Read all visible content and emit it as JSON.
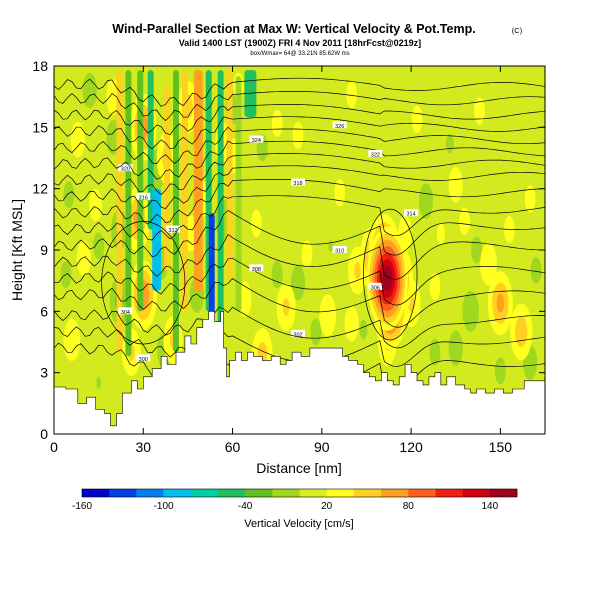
{
  "title": "Wind-Parallel Section at Max W: Vertical Velocity & Pot.Temp.",
  "copyright": "(C)",
  "subtitle": "Valid 1400 LST (1900Z) FRI 4 Nov 2011 [18hrFcst@0219z]",
  "subsubtitle": "box/Wmax= 64@ 33.21N 85.62W ms",
  "chart_data": {
    "type": "heatmap",
    "xlabel": "Distance [nm]",
    "ylabel": "Height [Kft MSL]",
    "xlim": [
      0,
      165
    ],
    "ylim": [
      0,
      18
    ],
    "xticks": [
      0,
      30,
      60,
      90,
      120,
      150
    ],
    "yticks": [
      0,
      3,
      6,
      9,
      12,
      15,
      18
    ],
    "colorbar": {
      "label": "Vertical Velocity [cm/s]",
      "tick_labels": [
        "-160",
        "-100",
        "-40",
        "20",
        "80",
        "140"
      ],
      "colors": [
        "#0000c8",
        "#0040e6",
        "#0080f0",
        "#00c0ec",
        "#00d0a8",
        "#20c060",
        "#60c020",
        "#a0d820",
        "#d8f020",
        "#ffff20",
        "#ffd020",
        "#ffa020",
        "#ff6020",
        "#f02010",
        "#d00010",
        "#a00020"
      ]
    },
    "terrain": [
      [
        0,
        2.3
      ],
      [
        4,
        2.2
      ],
      [
        8,
        1.5
      ],
      [
        11,
        1.8
      ],
      [
        14,
        1.2
      ],
      [
        17,
        1.0
      ],
      [
        19,
        0.4
      ],
      [
        21,
        1.0
      ],
      [
        23,
        2.0
      ],
      [
        26,
        2.6
      ],
      [
        28,
        2.2
      ],
      [
        30,
        2.8
      ],
      [
        33,
        3.2
      ],
      [
        36,
        3.8
      ],
      [
        38,
        3.4
      ],
      [
        41,
        4.0
      ],
      [
        44,
        4.8
      ],
      [
        46,
        4.4
      ],
      [
        48,
        5.2
      ],
      [
        50,
        5.6
      ],
      [
        52,
        6.0
      ],
      [
        54,
        5.5
      ],
      [
        56,
        6.0
      ],
      [
        57,
        4.2
      ],
      [
        58,
        2.8
      ],
      [
        59,
        3.6
      ],
      [
        61,
        4.0
      ],
      [
        63,
        3.6
      ],
      [
        65,
        4.0
      ],
      [
        67,
        3.8
      ],
      [
        70,
        3.6
      ],
      [
        73,
        3.8
      ],
      [
        76,
        3.4
      ],
      [
        78,
        3.6
      ],
      [
        80,
        4.0
      ],
      [
        83,
        3.8
      ],
      [
        86,
        4.2
      ],
      [
        89,
        4.2
      ],
      [
        92,
        4.2
      ],
      [
        95,
        4.2
      ],
      [
        97,
        3.8
      ],
      [
        99,
        3.6
      ],
      [
        102,
        3.4
      ],
      [
        104,
        3.0
      ],
      [
        106,
        2.8
      ],
      [
        108,
        2.6
      ],
      [
        110,
        3.0
      ],
      [
        112,
        2.6
      ],
      [
        114,
        2.4
      ],
      [
        116,
        2.8
      ],
      [
        118,
        3.4
      ],
      [
        120,
        3.0
      ],
      [
        122,
        2.6
      ],
      [
        124,
        2.4
      ],
      [
        126,
        2.8
      ],
      [
        128,
        3.0
      ],
      [
        130,
        2.4
      ],
      [
        132,
        2.8
      ],
      [
        135,
        2.4
      ],
      [
        138,
        2.2
      ],
      [
        140,
        2.0
      ],
      [
        142,
        2.2
      ],
      [
        145,
        2.0
      ],
      [
        148,
        2.2
      ],
      [
        151,
        2.0
      ],
      [
        154,
        2.2
      ],
      [
        158,
        2.6
      ],
      [
        162,
        2.6
      ],
      [
        165,
        2.6
      ]
    ],
    "velocity_cells": [
      {
        "x": 112,
        "y": 7.6,
        "value": 140
      },
      {
        "x": 111,
        "y": 8.8,
        "value": 90
      },
      {
        "x": 113,
        "y": 6.2,
        "value": 100
      },
      {
        "x": 116,
        "y": 7.5,
        "value": 70
      },
      {
        "x": 107,
        "y": 8.6,
        "value": 60
      },
      {
        "x": 120,
        "y": 6.4,
        "value": 40
      },
      {
        "x": 102,
        "y": 8.0,
        "value": 40
      },
      {
        "x": 118,
        "y": 9.8,
        "value": 30
      },
      {
        "x": 112,
        "y": 4.5,
        "value": 40
      },
      {
        "x": 128,
        "y": 7.2,
        "value": 25
      },
      {
        "x": 100,
        "y": 5.4,
        "value": 30
      },
      {
        "x": 150,
        "y": 6.4,
        "value": 60
      },
      {
        "x": 146,
        "y": 8.3,
        "value": 35
      },
      {
        "x": 157,
        "y": 5.0,
        "value": 50
      },
      {
        "x": 153,
        "y": 10.0,
        "value": 25
      },
      {
        "x": 135,
        "y": 12.2,
        "value": 30
      },
      {
        "x": 122,
        "y": 15.4,
        "value": 25
      },
      {
        "x": 143,
        "y": 15.8,
        "value": 25
      },
      {
        "x": 96,
        "y": 11.8,
        "value": 25
      },
      {
        "x": 82,
        "y": 14.6,
        "value": 25
      },
      {
        "x": 100,
        "y": 16.6,
        "value": 25
      },
      {
        "x": 30,
        "y": 6.8,
        "value": 70
      },
      {
        "x": 28,
        "y": 10.5,
        "value": 60
      },
      {
        "x": 30,
        "y": 15.0,
        "value": 65
      },
      {
        "x": 26,
        "y": 4.0,
        "value": 40
      },
      {
        "x": 40,
        "y": 4.6,
        "value": 40
      },
      {
        "x": 46,
        "y": 9.8,
        "value": 30
      },
      {
        "x": 38,
        "y": 13.5,
        "value": 45
      },
      {
        "x": 45,
        "y": 16.0,
        "value": 45
      },
      {
        "x": 50,
        "y": 11.5,
        "value": 30
      },
      {
        "x": 57,
        "y": 14.2,
        "value": 35
      },
      {
        "x": 68,
        "y": 10.3,
        "value": 25
      },
      {
        "x": 85,
        "y": 8.8,
        "value": 25
      },
      {
        "x": 8,
        "y": 14.4,
        "value": 30
      },
      {
        "x": 10,
        "y": 8.6,
        "value": 30
      },
      {
        "x": 6,
        "y": 4.6,
        "value": 35
      },
      {
        "x": 14,
        "y": 11.2,
        "value": 28
      },
      {
        "x": 20,
        "y": 16.5,
        "value": 30
      },
      {
        "x": 62,
        "y": 17.0,
        "value": 25
      },
      {
        "x": 70,
        "y": 3.9,
        "value": 45
      },
      {
        "x": 78,
        "y": 6.2,
        "value": 40
      },
      {
        "x": 64,
        "y": 6.6,
        "value": 30
      },
      {
        "x": 92,
        "y": 5.8,
        "value": 35
      },
      {
        "x": 60,
        "y": 13.6,
        "value": 30
      },
      {
        "x": 75,
        "y": 15.2,
        "value": 25
      },
      {
        "x": 130,
        "y": 9.8,
        "value": 22
      },
      {
        "x": 138,
        "y": 10.4,
        "value": 25
      },
      {
        "x": 160,
        "y": 11.5,
        "value": 25
      },
      {
        "x": 135,
        "y": 4.2,
        "value": -20
      },
      {
        "x": 140,
        "y": 6.0,
        "value": -25
      },
      {
        "x": 128,
        "y": 4.0,
        "value": -15
      },
      {
        "x": 142,
        "y": 9.0,
        "value": -15
      },
      {
        "x": 125,
        "y": 11.4,
        "value": -20
      },
      {
        "x": 133,
        "y": 14.2,
        "value": -12
      },
      {
        "x": 88,
        "y": 5.0,
        "value": -15
      },
      {
        "x": 93,
        "y": 9.2,
        "value": -10
      },
      {
        "x": 82,
        "y": 7.4,
        "value": -20
      },
      {
        "x": 75,
        "y": 7.8,
        "value": -15
      },
      {
        "x": 104,
        "y": 5.1,
        "value": -12
      },
      {
        "x": 22,
        "y": 6.5,
        "value": -35
      },
      {
        "x": 22,
        "y": 10.0,
        "value": -25
      },
      {
        "x": 20,
        "y": 14.5,
        "value": -20
      },
      {
        "x": 15,
        "y": 2.5,
        "value": -10
      },
      {
        "x": 36,
        "y": 8.4,
        "value": -20
      },
      {
        "x": 35,
        "y": 13.0,
        "value": -25
      },
      {
        "x": 37,
        "y": 4.1,
        "value": -20
      },
      {
        "x": 48,
        "y": 6.8,
        "value": -20
      },
      {
        "x": 57,
        "y": 10.5,
        "value": -25
      },
      {
        "x": 60,
        "y": 16.0,
        "value": -20
      },
      {
        "x": 70,
        "y": 14.0,
        "value": -15
      },
      {
        "x": 15,
        "y": 9.2,
        "value": -15
      },
      {
        "x": 4,
        "y": 7.8,
        "value": -15
      },
      {
        "x": 5,
        "y": 11.7,
        "value": -15
      },
      {
        "x": 12,
        "y": 16.8,
        "value": -20
      },
      {
        "x": 160,
        "y": 3.5,
        "value": -20
      },
      {
        "x": 162,
        "y": 8.0,
        "value": -15
      },
      {
        "x": 150,
        "y": 3.1,
        "value": -15
      }
    ],
    "vertical_bands": [
      {
        "x0": 24,
        "x1": 26,
        "y0": 3.8,
        "y1": 17.8,
        "value": -40
      },
      {
        "x0": 31.5,
        "x1": 33.5,
        "y0": 10.0,
        "y1": 17.8,
        "value": -60
      },
      {
        "x0": 33,
        "x1": 36,
        "y0": 7.0,
        "y1": 12.0,
        "value": -90
      },
      {
        "x0": 28,
        "x1": 30,
        "y0": 6.0,
        "y1": 17.8,
        "value": -25
      },
      {
        "x0": 40,
        "x1": 42,
        "y0": 4.0,
        "y1": 17.8,
        "value": -30
      },
      {
        "x0": 51,
        "x1": 53,
        "y0": 6.0,
        "y1": 17.8,
        "value": -45
      },
      {
        "x0": 55,
        "x1": 57,
        "y0": 5.0,
        "y1": 17.8,
        "value": -50
      },
      {
        "x0": 61,
        "x1": 63,
        "y0": 6.0,
        "y1": 17.5,
        "value": -20
      },
      {
        "x0": 64,
        "x1": 68,
        "y0": 15.5,
        "y1": 17.8,
        "value": -60
      },
      {
        "x0": 52,
        "x1": 54,
        "y0": 5.2,
        "y1": 10.8,
        "value": -130
      },
      {
        "x0": 47,
        "x1": 50,
        "y0": 7.0,
        "y1": 17.8,
        "value": 60
      },
      {
        "x0": 21,
        "x1": 23,
        "y0": 4.0,
        "y1": 17.8,
        "value": 55
      },
      {
        "x0": 43,
        "x1": 45,
        "y0": 6.0,
        "y1": 17.8,
        "value": 45
      },
      {
        "x0": 37,
        "x1": 39,
        "y0": 8.0,
        "y1": 17.0,
        "value": 40
      },
      {
        "x0": 58,
        "x1": 60,
        "y0": 7.5,
        "y1": 17.8,
        "value": 45
      }
    ],
    "theta_contours": {
      "unit": "K",
      "labeled_values": [
        "300",
        "302",
        "304",
        "306",
        "308",
        "310",
        "312",
        "314",
        "316",
        "318",
        "320",
        "322",
        "324",
        "326"
      ],
      "levels": [
        {
          "value": 300,
          "left": 4.2,
          "mid": 3.2,
          "right": 3.5
        },
        {
          "value": 302,
          "left": 5.0,
          "mid": 4.8,
          "right": 4.6
        },
        {
          "value": 304,
          "left": 5.8,
          "mid": 6.2,
          "right": 5.6
        },
        {
          "value": 306,
          "left": 6.8,
          "mid": 7.6,
          "right": 6.8
        },
        {
          "value": 308,
          "left": 7.6,
          "mid": 8.6,
          "right": 8.0
        },
        {
          "value": 310,
          "left": 8.4,
          "mid": 9.6,
          "right": 9.2
        },
        {
          "value": 312,
          "left": 9.2,
          "mid": 10.8,
          "right": 10.2
        },
        {
          "value": 314,
          "left": 10.0,
          "mid": 11.6,
          "right": 11.0
        },
        {
          "value": 316,
          "left": 10.8,
          "mid": 12.4,
          "right": 11.8
        },
        {
          "value": 318,
          "left": 11.6,
          "mid": 13.0,
          "right": 12.6
        },
        {
          "value": 320,
          "left": 12.4,
          "mid": 13.6,
          "right": 13.2
        },
        {
          "value": 322,
          "left": 13.2,
          "mid": 14.2,
          "right": 13.8
        },
        {
          "value": 324,
          "left": 14.0,
          "mid": 14.8,
          "right": 14.4
        },
        {
          "value": 326,
          "left": 14.8,
          "mid": 15.4,
          "right": 15.0
        },
        {
          "value": 328,
          "left": 15.6,
          "mid": 16.0,
          "right": 15.6
        },
        {
          "value": 330,
          "left": 16.4,
          "mid": 16.6,
          "right": 16.3
        },
        {
          "value": 332,
          "left": 17.1,
          "mid": 17.2,
          "right": 17.0
        }
      ]
    }
  }
}
